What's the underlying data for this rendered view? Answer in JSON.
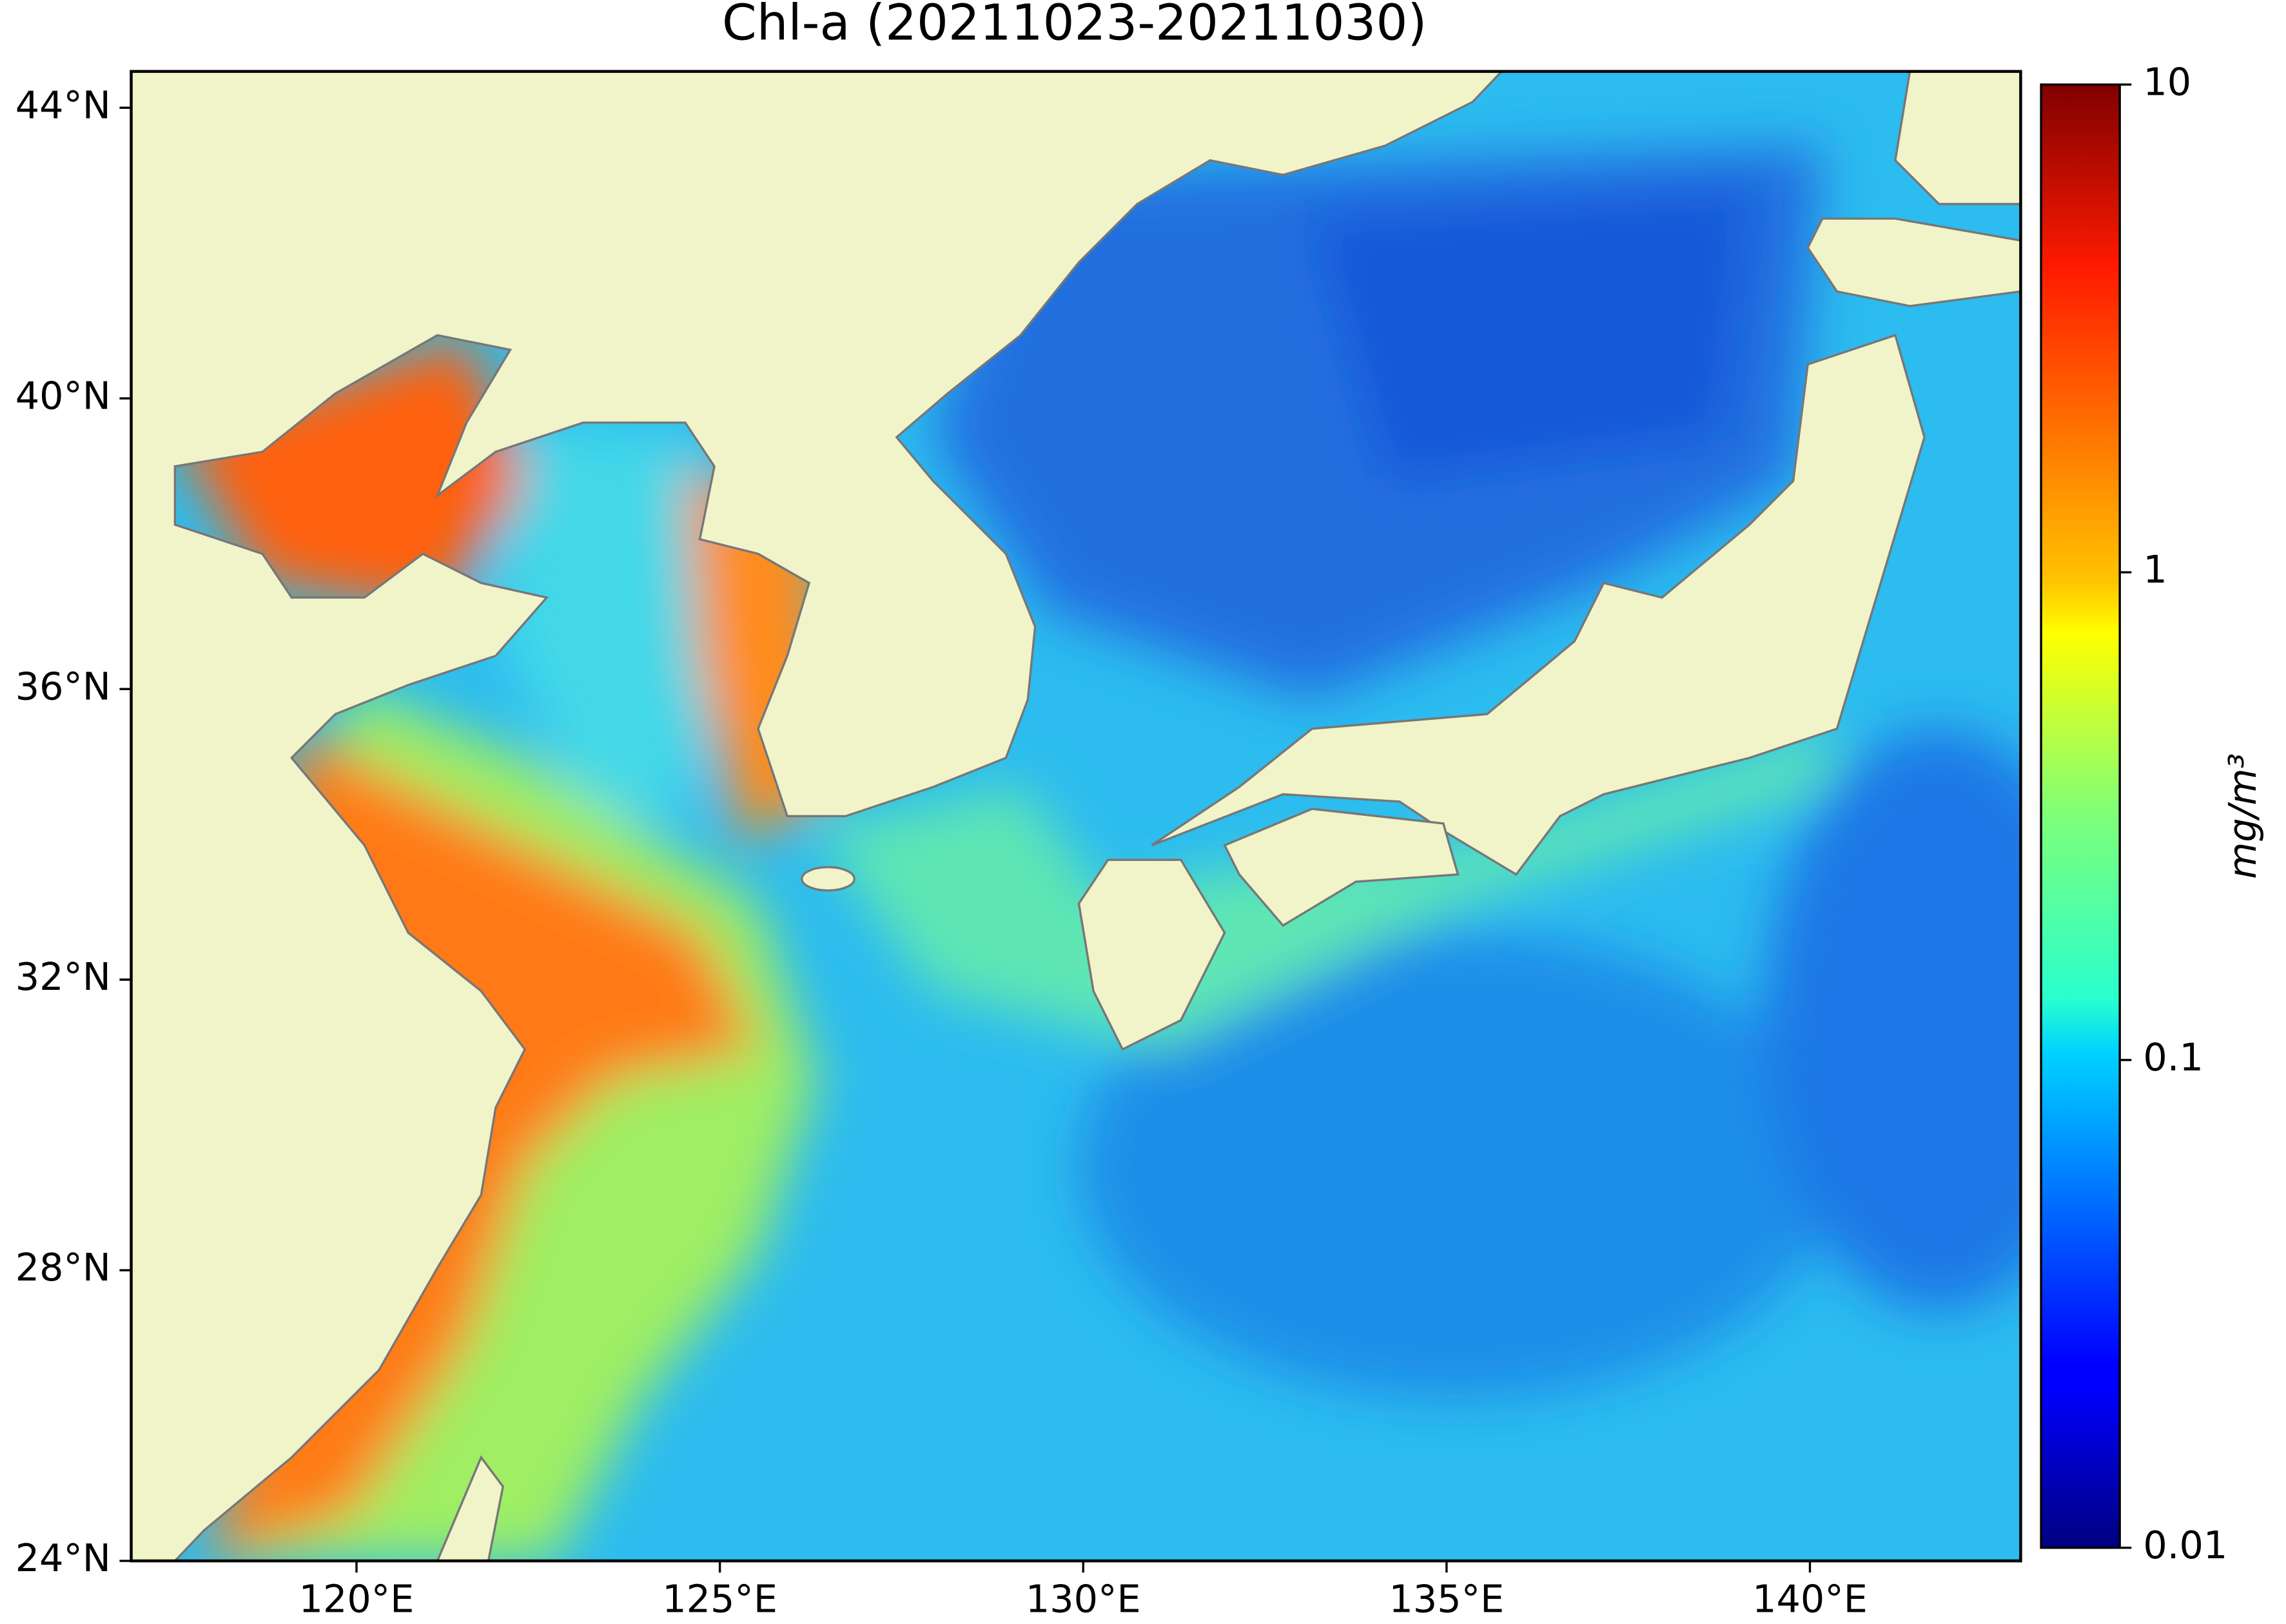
{
  "chart_data": {
    "type": "map",
    "title": "Chl-a (20211023-20211030)",
    "xlim": [
      116.9,
      142.9
    ],
    "ylim": [
      24,
      44.5
    ],
    "xticks": [
      {
        "value": 120,
        "label": "120°E"
      },
      {
        "value": 125,
        "label": "125°E"
      },
      {
        "value": 130,
        "label": "130°E"
      },
      {
        "value": 135,
        "label": "135°E"
      },
      {
        "value": 140,
        "label": "140°E"
      }
    ],
    "yticks": [
      {
        "value": 24,
        "label": "24°N"
      },
      {
        "value": 28,
        "label": "28°N"
      },
      {
        "value": 32,
        "label": "32°N"
      },
      {
        "value": 36,
        "label": "36°N"
      },
      {
        "value": 40,
        "label": "40°N"
      },
      {
        "value": 44,
        "label": "44°N"
      }
    ],
    "colorbar": {
      "label": "mg/m³",
      "scale": "log",
      "colormap": "jet",
      "lim": [
        0.01,
        10
      ],
      "ticks": [
        0.01,
        0.1,
        1,
        10
      ]
    }
  }
}
